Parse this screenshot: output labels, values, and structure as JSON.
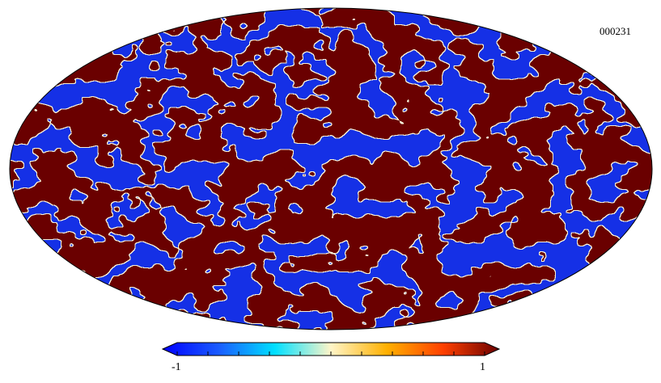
{
  "chart_data": {
    "type": "heatmap",
    "projection": "mollweide",
    "map_id": "000231",
    "colorbar": {
      "min_label": "-1",
      "max_label": "1",
      "range": [
        -1,
        1
      ],
      "minor_ticks": 9,
      "colors": [
        "#0000ff",
        "#1a5cff",
        "#00e0ff",
        "#fff5c8",
        "#ffb000",
        "#ff4000",
        "#6a0000"
      ],
      "extend": "both"
    },
    "field": {
      "saturated_low_color": "#1530e6",
      "saturated_high_color": "#6a0400",
      "contour_color": "#f5f0d8"
    }
  }
}
